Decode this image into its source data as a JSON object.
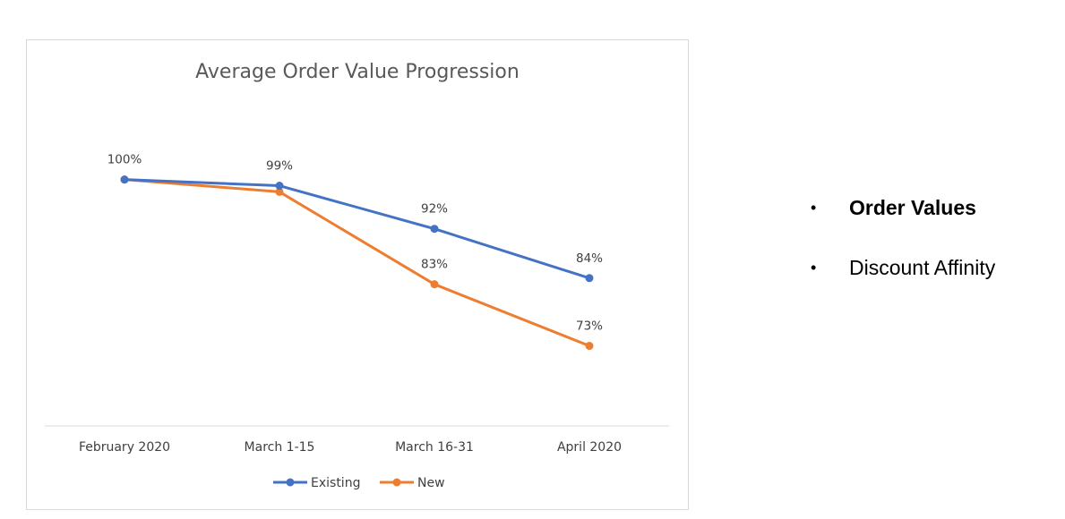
{
  "chart_data": {
    "type": "line",
    "title": "Average Order Value Progression",
    "categories": [
      "February 2020",
      "March 1-15",
      "March 16-31",
      "April 2020"
    ],
    "series": [
      {
        "name": "Existing",
        "values": [
          100,
          99,
          92,
          84
        ],
        "labels": [
          "100%",
          "99%",
          "92%",
          "84%"
        ],
        "color": "#4472C4"
      },
      {
        "name": "New",
        "values": [
          100,
          98,
          83,
          73
        ],
        "labels": [
          "",
          "",
          "83%",
          "73%"
        ],
        "color": "#ED7D31"
      }
    ],
    "ylim": [
      60,
      103
    ],
    "grid": false,
    "legend": "bottom"
  },
  "side_bullets": {
    "items": [
      {
        "text": "Order Values",
        "bold": true
      },
      {
        "text": "Discount Affinity",
        "bold": false
      }
    ],
    "bullet_char": "•"
  }
}
